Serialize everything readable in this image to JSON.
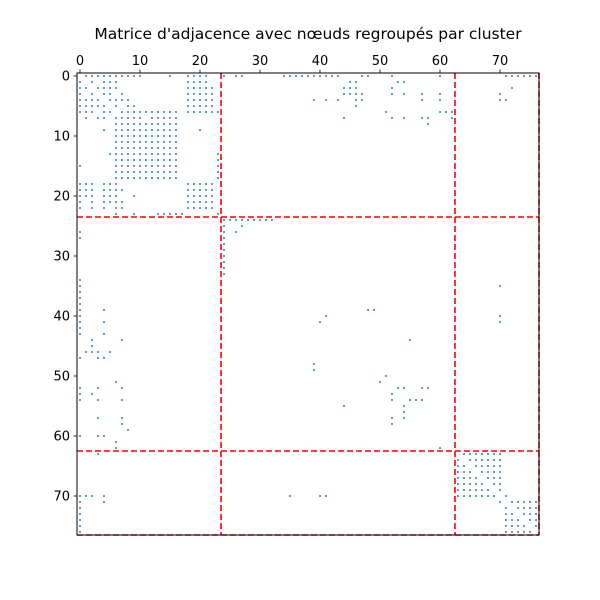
{
  "chart_data": {
    "type": "heatmap",
    "title": "Matrice d'adjacence avec nœuds regroupés par cluster",
    "xlabel": "",
    "ylabel": "",
    "n_nodes": 77,
    "xlim": [
      0,
      77
    ],
    "ylim": [
      77,
      0
    ],
    "x_ticks": [
      0,
      10,
      20,
      30,
      40,
      50,
      60,
      70
    ],
    "y_ticks": [
      0,
      10,
      20,
      30,
      40,
      50,
      60,
      70
    ],
    "x_tick_position": "top",
    "grid": false,
    "marker_color": "#1f77b4",
    "cluster_line_color": "#ff0000",
    "cluster_boundaries": [
      23.5,
      62.5,
      76.5
    ],
    "nonzero_rows": [
      {
        "row": 0,
        "cols": [
          1,
          2,
          3,
          4,
          5,
          6,
          7,
          8,
          9,
          10,
          15,
          18,
          19,
          20,
          21,
          24,
          26,
          27,
          34,
          35,
          36,
          37,
          38,
          39,
          40,
          41,
          42,
          43,
          47,
          48,
          52,
          60,
          71,
          72,
          73,
          74,
          75,
          76
        ]
      },
      {
        "row": 1,
        "cols": [
          0,
          2,
          4,
          5,
          6,
          18,
          19,
          20,
          21,
          45,
          46,
          53,
          54
        ]
      },
      {
        "row": 2,
        "cols": [
          0,
          1,
          3,
          4,
          5,
          6,
          18,
          19,
          20,
          21,
          22,
          44,
          45,
          46,
          52,
          72
        ]
      },
      {
        "row": 3,
        "cols": [
          0,
          2,
          4,
          5,
          7,
          18,
          19,
          20,
          21,
          22,
          44,
          45,
          46,
          47,
          52,
          54,
          57,
          60,
          70
        ]
      },
      {
        "row": 4,
        "cols": [
          0,
          1,
          2,
          3,
          5,
          6,
          7,
          8,
          18,
          19,
          20,
          21,
          22,
          39,
          41,
          43,
          46,
          47,
          57,
          60,
          70,
          71
        ]
      },
      {
        "row": 5,
        "cols": [
          0,
          1,
          2,
          3,
          4,
          6,
          8,
          9,
          18,
          19,
          20,
          21,
          22,
          46
        ]
      },
      {
        "row": 6,
        "cols": [
          0,
          1,
          2,
          4,
          5,
          7,
          8,
          9,
          10,
          11,
          12,
          13,
          14,
          15,
          16,
          18,
          19,
          20,
          21,
          22,
          23,
          51,
          60,
          61,
          62
        ]
      },
      {
        "row": 7,
        "cols": [
          1,
          3,
          4,
          6,
          7,
          8,
          9,
          10,
          12,
          13,
          14,
          15,
          16,
          44,
          52,
          54,
          57,
          58,
          62
        ]
      },
      {
        "row": 8,
        "cols": [
          6,
          7,
          8,
          9,
          10,
          11,
          12,
          13,
          14,
          15,
          16,
          58
        ]
      },
      {
        "row": 9,
        "cols": [
          4,
          6,
          7,
          8,
          9,
          10,
          11,
          12,
          13,
          14,
          15,
          16,
          20
        ]
      },
      {
        "row": 10,
        "cols": [
          6,
          7,
          8,
          9,
          10,
          11,
          12,
          13,
          14,
          15,
          16
        ]
      },
      {
        "row": 11,
        "cols": [
          6,
          7,
          8,
          9,
          10,
          11,
          12,
          13,
          14,
          15,
          16
        ]
      },
      {
        "row": 12,
        "cols": [
          6,
          7,
          8,
          9,
          10,
          11,
          12,
          13,
          14,
          15,
          16
        ]
      },
      {
        "row": 13,
        "cols": [
          5,
          6,
          7,
          8,
          9,
          10,
          11,
          12,
          13,
          14,
          15,
          16,
          23
        ]
      },
      {
        "row": 14,
        "cols": [
          6,
          7,
          8,
          9,
          10,
          11,
          12,
          13,
          14,
          15,
          16,
          23
        ]
      },
      {
        "row": 15,
        "cols": [
          0,
          6,
          7,
          8,
          9,
          10,
          11,
          12,
          13,
          14,
          15,
          16,
          23
        ]
      },
      {
        "row": 16,
        "cols": [
          6,
          7,
          8,
          9,
          10,
          11,
          12,
          13,
          14,
          15,
          16,
          23
        ]
      },
      {
        "row": 17,
        "cols": [
          6,
          7,
          8,
          9,
          10,
          11,
          12,
          13,
          14,
          15,
          16,
          23
        ]
      },
      {
        "row": 18,
        "cols": [
          0,
          1,
          2,
          4,
          5,
          6,
          18,
          19,
          20,
          21,
          22
        ]
      },
      {
        "row": 19,
        "cols": [
          0,
          1,
          2,
          4,
          5,
          6,
          7,
          18,
          19,
          20,
          21,
          22
        ]
      },
      {
        "row": 20,
        "cols": [
          0,
          1,
          2,
          4,
          5,
          6,
          9,
          18,
          19,
          20,
          21,
          22
        ]
      },
      {
        "row": 21,
        "cols": [
          0,
          2,
          4,
          5,
          6,
          7,
          18,
          19,
          20,
          21,
          22
        ]
      },
      {
        "row": 22,
        "cols": [
          0,
          2,
          4,
          6,
          7,
          18,
          19,
          20,
          21,
          22
        ]
      },
      {
        "row": 23,
        "cols": [
          6,
          9,
          13,
          14,
          15,
          16,
          17,
          23
        ]
      },
      {
        "row": 24,
        "cols": [
          24,
          25,
          26,
          27,
          28,
          29,
          30,
          31,
          32
        ]
      },
      {
        "row": 25,
        "cols": [
          24,
          27
        ]
      },
      {
        "row": 26,
        "cols": [
          0,
          24,
          26
        ]
      },
      {
        "row": 27,
        "cols": [
          0,
          24
        ]
      },
      {
        "row": 28,
        "cols": [
          24
        ]
      },
      {
        "row": 29,
        "cols": [
          24
        ]
      },
      {
        "row": 30,
        "cols": [
          24
        ]
      },
      {
        "row": 31,
        "cols": [
          24
        ]
      },
      {
        "row": 32,
        "cols": [
          24
        ]
      },
      {
        "row": 33,
        "cols": [
          24
        ]
      },
      {
        "row": 34,
        "cols": [
          0
        ]
      },
      {
        "row": 35,
        "cols": [
          0,
          70
        ]
      },
      {
        "row": 36,
        "cols": [
          0
        ]
      },
      {
        "row": 37,
        "cols": [
          0
        ]
      },
      {
        "row": 38,
        "cols": [
          0
        ]
      },
      {
        "row": 39,
        "cols": [
          0,
          4,
          48,
          49
        ]
      },
      {
        "row": 40,
        "cols": [
          0,
          41,
          70
        ]
      },
      {
        "row": 41,
        "cols": [
          0,
          4,
          40,
          70
        ]
      },
      {
        "row": 42,
        "cols": [
          0
        ]
      },
      {
        "row": 43,
        "cols": [
          0,
          4
        ]
      },
      {
        "row": 44,
        "cols": [
          2,
          7,
          55
        ]
      },
      {
        "row": 45,
        "cols": [
          2
        ]
      },
      {
        "row": 46,
        "cols": [
          1,
          2,
          3,
          5
        ]
      },
      {
        "row": 47,
        "cols": [
          0,
          3,
          4
        ]
      },
      {
        "row": 48,
        "cols": [
          39
        ]
      },
      {
        "row": 49,
        "cols": [
          39
        ]
      },
      {
        "row": 50,
        "cols": [
          51
        ]
      },
      {
        "row": 51,
        "cols": [
          6,
          50
        ]
      },
      {
        "row": 52,
        "cols": [
          0,
          3,
          7,
          53,
          54,
          57,
          58
        ]
      },
      {
        "row": 53,
        "cols": [
          0,
          2,
          52
        ]
      },
      {
        "row": 54,
        "cols": [
          0,
          3,
          7,
          52,
          55,
          56,
          57
        ]
      },
      {
        "row": 55,
        "cols": [
          44,
          54
        ]
      },
      {
        "row": 56,
        "cols": [
          54
        ]
      },
      {
        "row": 57,
        "cols": [
          3,
          7,
          52,
          54
        ]
      },
      {
        "row": 58,
        "cols": [
          7,
          52
        ]
      },
      {
        "row": 59,
        "cols": [
          8
        ]
      },
      {
        "row": 60,
        "cols": [
          0,
          3,
          4
        ]
      },
      {
        "row": 61,
        "cols": [
          6
        ]
      },
      {
        "row": 62,
        "cols": [
          6,
          60
        ]
      },
      {
        "row": 63,
        "cols": [
          3,
          64,
          65,
          66,
          67,
          68,
          69,
          70
        ]
      },
      {
        "row": 64,
        "cols": [
          63,
          65,
          66,
          67,
          68,
          69,
          70
        ]
      },
      {
        "row": 65,
        "cols": [
          63,
          64,
          66,
          67,
          68,
          69,
          70
        ]
      },
      {
        "row": 66,
        "cols": [
          63,
          64,
          65,
          67,
          68,
          69,
          70
        ]
      },
      {
        "row": 67,
        "cols": [
          63,
          64,
          65,
          66,
          68,
          69,
          70
        ]
      },
      {
        "row": 68,
        "cols": [
          63,
          64,
          65,
          66,
          67,
          69,
          70
        ]
      },
      {
        "row": 69,
        "cols": [
          63,
          64,
          65,
          66,
          67,
          68,
          70
        ]
      },
      {
        "row": 70,
        "cols": [
          0,
          1,
          2,
          4,
          35,
          40,
          41,
          63,
          64,
          65,
          66,
          67,
          68,
          69,
          71
        ]
      },
      {
        "row": 71,
        "cols": [
          0,
          4,
          70,
          72,
          73,
          74,
          75,
          76
        ]
      },
      {
        "row": 72,
        "cols": [
          0,
          71,
          73,
          74,
          75,
          76
        ]
      },
      {
        "row": 73,
        "cols": [
          0,
          71,
          72,
          74,
          75,
          76
        ]
      },
      {
        "row": 74,
        "cols": [
          0,
          71,
          72,
          73,
          75,
          76
        ]
      },
      {
        "row": 75,
        "cols": [
          0,
          71,
          72,
          73,
          74,
          76
        ]
      },
      {
        "row": 76,
        "cols": [
          0,
          71,
          72,
          73,
          74,
          75
        ]
      }
    ]
  }
}
